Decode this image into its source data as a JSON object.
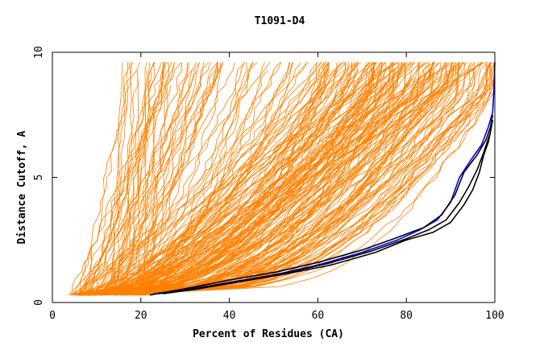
{
  "chart_data": {
    "type": "line",
    "title": "T1091-D4",
    "xlabel": "Percent of Residues (CA)",
    "ylabel": "Distance Cutoff, A",
    "xlim": [
      0,
      100
    ],
    "ylim": [
      0,
      10
    ],
    "x_ticks": [
      0,
      20,
      40,
      60,
      80,
      100
    ],
    "y_ticks": [
      0,
      5,
      10
    ],
    "grid": false,
    "legend": "none",
    "colors": {
      "models": "#ff8000",
      "highlight": "#0000ff",
      "reference": "#000000",
      "axes": "#000000"
    },
    "series": [
      {
        "color": "#0000ff",
        "points": [
          [
            23,
            0.35
          ],
          [
            30,
            0.5
          ],
          [
            40,
            0.8
          ],
          [
            50,
            1.1
          ],
          [
            60,
            1.5
          ],
          [
            70,
            2.0
          ],
          [
            78,
            2.5
          ],
          [
            83,
            2.9
          ],
          [
            87,
            3.3
          ],
          [
            90,
            4.0
          ],
          [
            92,
            5.0
          ],
          [
            95,
            5.8
          ],
          [
            97,
            6.3
          ],
          [
            98.5,
            7.0
          ],
          [
            99.5,
            7.6
          ],
          [
            99.8,
            8.5
          ],
          [
            100,
            9.6
          ]
        ]
      },
      {
        "color": "#000000",
        "points": [
          [
            22,
            0.3
          ],
          [
            30,
            0.55
          ],
          [
            40,
            0.9
          ],
          [
            50,
            1.2
          ],
          [
            60,
            1.6
          ],
          [
            70,
            2.1
          ],
          [
            78,
            2.6
          ],
          [
            84,
            3.0
          ],
          [
            88,
            3.5
          ],
          [
            91,
            4.3
          ],
          [
            93,
            5.2
          ],
          [
            96,
            5.9
          ],
          [
            98,
            6.5
          ],
          [
            99,
            7.0
          ],
          [
            99.5,
            7.5
          ]
        ]
      },
      {
        "color": "#000000",
        "points": [
          [
            24,
            0.35
          ],
          [
            32,
            0.55
          ],
          [
            42,
            0.85
          ],
          [
            52,
            1.15
          ],
          [
            62,
            1.55
          ],
          [
            72,
            2.05
          ],
          [
            80,
            2.55
          ],
          [
            85,
            2.9
          ],
          [
            89,
            3.3
          ],
          [
            92,
            4.0
          ],
          [
            94,
            4.6
          ],
          [
            96,
            5.3
          ],
          [
            97.5,
            6.0
          ],
          [
            99,
            6.8
          ],
          [
            99.5,
            7.3
          ]
        ]
      },
      {
        "color": "#000000",
        "points": [
          [
            25,
            0.35
          ],
          [
            33,
            0.55
          ],
          [
            43,
            0.85
          ],
          [
            53,
            1.15
          ],
          [
            63,
            1.5
          ],
          [
            73,
            2.0
          ],
          [
            80,
            2.5
          ],
          [
            86,
            2.8
          ],
          [
            90,
            3.2
          ],
          [
            93,
            3.9
          ],
          [
            95,
            4.5
          ],
          [
            96.5,
            5.2
          ],
          [
            97.5,
            5.9
          ],
          [
            98.5,
            6.4
          ],
          [
            99,
            6.8
          ]
        ]
      }
    ]
  }
}
